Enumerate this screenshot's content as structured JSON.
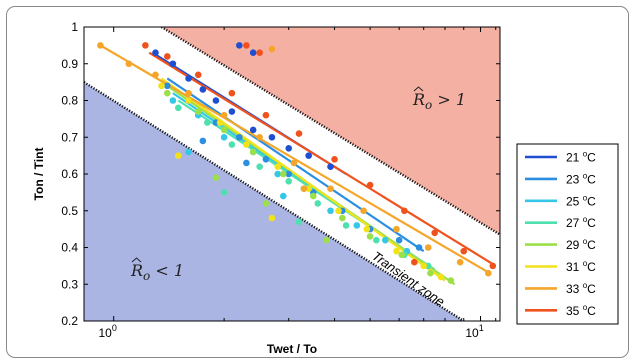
{
  "chart_data": {
    "type": "scatter",
    "xlabel": "Twet / To",
    "ylabel": "Ton / Tint",
    "xscale": "log",
    "xlim": [
      0.83,
      11.3
    ],
    "ylim": [
      0.2,
      1.0
    ],
    "x_ticks": [
      {
        "value": 1,
        "label": "10",
        "sup": "0"
      },
      {
        "value": 10,
        "label": "10",
        "sup": "1"
      }
    ],
    "y_ticks": [
      0.2,
      0.3,
      0.4,
      0.5,
      0.6,
      0.7,
      0.8,
      0.9,
      1
    ],
    "y_tick_labels": [
      "0.2",
      "0.3",
      "0.4",
      "0.5",
      "0.6",
      "0.7",
      "0.8",
      "0.9",
      "1"
    ],
    "regions": [
      {
        "label_math": "R̂o > 1",
        "text_main": "R",
        "text_sub": "o",
        "text_rel": " > 1",
        "color": "#f5b0a4",
        "boundary": [
          [
            1.35,
            1.0
          ],
          [
            11.3,
            0.435
          ]
        ]
      },
      {
        "label_math": "R̂o < 1",
        "text_main": "R",
        "text_sub": "o",
        "text_rel": " < 1",
        "color": "#aab5e3",
        "boundary": [
          [
            0.83,
            0.85
          ],
          [
            9.0,
            0.2
          ]
        ]
      }
    ],
    "transient_label": "Transient zone",
    "legend_position": "right",
    "series": [
      {
        "name": "21 °C",
        "temp": "21",
        "color": "#1f4fd0",
        "fit": [
          [
            1.3,
            0.925
          ],
          [
            4.3,
            0.6
          ]
        ],
        "points": [
          [
            1.3,
            0.93
          ],
          [
            1.45,
            0.9
          ],
          [
            1.6,
            0.86
          ],
          [
            1.75,
            0.83
          ],
          [
            1.9,
            0.8
          ],
          [
            2.1,
            0.77
          ],
          [
            2.4,
            0.72
          ],
          [
            2.7,
            0.7
          ],
          [
            3.0,
            0.67
          ],
          [
            3.4,
            0.65
          ],
          [
            3.9,
            0.62
          ],
          [
            2.2,
            0.95
          ],
          [
            2.4,
            0.93
          ]
        ]
      },
      {
        "name": "23 °C",
        "temp": "23",
        "color": "#2a8fe0",
        "fit": [
          [
            1.4,
            0.86
          ],
          [
            7.0,
            0.39
          ]
        ],
        "points": [
          [
            1.4,
            0.84
          ],
          [
            1.6,
            0.8
          ],
          [
            1.9,
            0.74
          ],
          [
            2.2,
            0.7
          ],
          [
            2.6,
            0.64
          ],
          [
            3.0,
            0.6
          ],
          [
            3.5,
            0.55
          ],
          [
            4.2,
            0.5
          ],
          [
            5.0,
            0.45
          ],
          [
            6.0,
            0.42
          ],
          [
            6.8,
            0.4
          ],
          [
            1.75,
            0.69
          ],
          [
            2.3,
            0.63
          ]
        ]
      },
      {
        "name": "25 °C",
        "temp": "25",
        "color": "#35c6e8",
        "fit": [
          [
            1.45,
            0.82
          ],
          [
            6.5,
            0.38
          ]
        ],
        "points": [
          [
            1.45,
            0.8
          ],
          [
            1.7,
            0.76
          ],
          [
            2.0,
            0.7
          ],
          [
            2.4,
            0.66
          ],
          [
            2.8,
            0.6
          ],
          [
            3.3,
            0.56
          ],
          [
            3.9,
            0.5
          ],
          [
            4.6,
            0.46
          ],
          [
            5.5,
            0.42
          ],
          [
            6.3,
            0.39
          ],
          [
            1.6,
            0.66
          ],
          [
            2.9,
            0.54
          ]
        ]
      },
      {
        "name": "27 °C",
        "temp": "27",
        "color": "#4fe0b0",
        "fit": [
          [
            1.5,
            0.8
          ],
          [
            7.5,
            0.34
          ]
        ],
        "points": [
          [
            1.5,
            0.78
          ],
          [
            1.8,
            0.74
          ],
          [
            2.1,
            0.68
          ],
          [
            2.5,
            0.62
          ],
          [
            3.0,
            0.58
          ],
          [
            3.6,
            0.52
          ],
          [
            4.3,
            0.46
          ],
          [
            5.2,
            0.42
          ],
          [
            6.2,
            0.38
          ],
          [
            7.2,
            0.35
          ],
          [
            2.0,
            0.55
          ],
          [
            3.2,
            0.47
          ]
        ]
      },
      {
        "name": "29 °C",
        "temp": "29",
        "color": "#9be04a",
        "fit": [
          [
            1.4,
            0.84
          ],
          [
            8.5,
            0.3
          ]
        ],
        "points": [
          [
            1.4,
            0.82
          ],
          [
            1.7,
            0.77
          ],
          [
            2.0,
            0.72
          ],
          [
            2.4,
            0.66
          ],
          [
            2.9,
            0.6
          ],
          [
            3.5,
            0.54
          ],
          [
            4.2,
            0.48
          ],
          [
            5.0,
            0.43
          ],
          [
            6.1,
            0.38
          ],
          [
            7.3,
            0.33
          ],
          [
            8.3,
            0.31
          ],
          [
            1.9,
            0.59
          ],
          [
            2.6,
            0.52
          ],
          [
            3.8,
            0.42
          ]
        ]
      },
      {
        "name": "31 °C",
        "temp": "31",
        "color": "#f2e21a",
        "fit": [
          [
            1.35,
            0.86
          ],
          [
            8.0,
            0.31
          ]
        ],
        "points": [
          [
            1.35,
            0.84
          ],
          [
            1.6,
            0.8
          ],
          [
            1.95,
            0.74
          ],
          [
            2.3,
            0.68
          ],
          [
            2.8,
            0.62
          ],
          [
            3.4,
            0.56
          ],
          [
            4.1,
            0.5
          ],
          [
            4.9,
            0.45
          ],
          [
            5.9,
            0.39
          ],
          [
            7.0,
            0.35
          ],
          [
            7.8,
            0.32
          ],
          [
            1.5,
            0.65
          ],
          [
            2.7,
            0.48
          ]
        ]
      },
      {
        "name": "33 °C",
        "temp": "33",
        "color": "#f5a62a",
        "fit": [
          [
            0.92,
            0.95
          ],
          [
            10.6,
            0.33
          ]
        ],
        "points": [
          [
            0.92,
            0.95
          ],
          [
            1.1,
            0.9
          ],
          [
            1.3,
            0.87
          ],
          [
            1.6,
            0.82
          ],
          [
            2.0,
            0.76
          ],
          [
            2.5,
            0.7
          ],
          [
            3.1,
            0.63
          ],
          [
            3.9,
            0.56
          ],
          [
            4.8,
            0.5
          ],
          [
            5.9,
            0.45
          ],
          [
            7.2,
            0.4
          ],
          [
            8.8,
            0.36
          ],
          [
            10.5,
            0.33
          ],
          [
            2.7,
            0.94
          ],
          [
            3.3,
            0.56
          ]
        ]
      },
      {
        "name": "35 °C",
        "temp": "35",
        "color": "#f0521e",
        "fit": [
          [
            1.25,
            0.93
          ],
          [
            10.8,
            0.355
          ]
        ],
        "points": [
          [
            1.22,
            0.95
          ],
          [
            1.4,
            0.92
          ],
          [
            1.7,
            0.87
          ],
          [
            2.1,
            0.82
          ],
          [
            2.6,
            0.76
          ],
          [
            3.2,
            0.71
          ],
          [
            4.0,
            0.64
          ],
          [
            5.0,
            0.57
          ],
          [
            6.2,
            0.5
          ],
          [
            7.5,
            0.44
          ],
          [
            9.0,
            0.39
          ],
          [
            10.8,
            0.35
          ],
          [
            2.3,
            0.95
          ],
          [
            2.5,
            0.93
          ],
          [
            6.6,
            0.36
          ]
        ]
      }
    ]
  }
}
